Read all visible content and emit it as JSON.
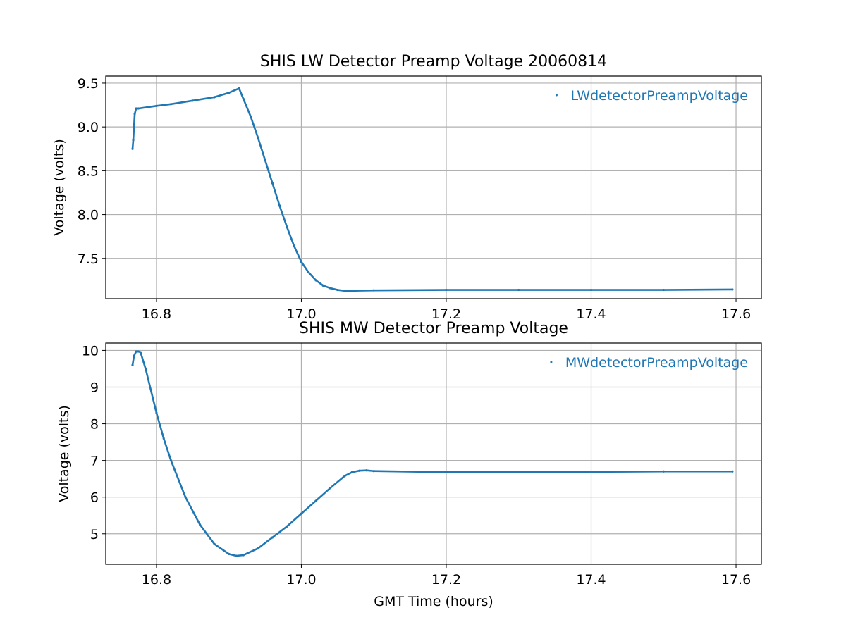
{
  "chart_data": [
    {
      "type": "scatter",
      "title": "SHIS LW Detector Preamp Voltage 20060814",
      "xlabel": "",
      "ylabel": "Voltage (volts)",
      "xlim": [
        16.73,
        17.635
      ],
      "ylim": [
        7.04,
        9.58
      ],
      "xticks": [
        16.8,
        17.0,
        17.2,
        17.4,
        17.6
      ],
      "xtick_labels": [
        "16.8",
        "17.0",
        "17.2",
        "17.4",
        "17.6"
      ],
      "yticks": [
        7.5,
        8.0,
        8.5,
        9.0,
        9.5
      ],
      "ytick_labels": [
        "7.5",
        "8.0",
        "8.5",
        "9.0",
        "9.5"
      ],
      "grid": true,
      "legend_position": "top-right",
      "color": "#1f77b4",
      "series": [
        {
          "name": "LWdetectorPreampVoltage",
          "x": [
            16.767,
            16.768,
            16.77,
            16.772,
            16.775,
            16.8,
            16.82,
            16.85,
            16.88,
            16.9,
            16.914,
            16.92,
            16.93,
            16.94,
            16.95,
            16.96,
            16.97,
            16.98,
            16.99,
            17.0,
            17.01,
            17.02,
            17.03,
            17.04,
            17.05,
            17.06,
            17.07,
            17.1,
            17.2,
            17.3,
            17.4,
            17.5,
            17.595
          ],
          "y": [
            8.75,
            8.85,
            9.15,
            9.21,
            9.21,
            9.24,
            9.26,
            9.3,
            9.34,
            9.39,
            9.44,
            9.32,
            9.12,
            8.88,
            8.62,
            8.36,
            8.1,
            7.86,
            7.64,
            7.46,
            7.34,
            7.25,
            7.19,
            7.16,
            7.14,
            7.13,
            7.13,
            7.135,
            7.14,
            7.14,
            7.14,
            7.14,
            7.145
          ]
        }
      ]
    },
    {
      "type": "scatter",
      "title": "SHIS MW Detector Preamp Voltage",
      "xlabel": "GMT Time (hours)",
      "ylabel": "Voltage (volts)",
      "xlim": [
        16.73,
        17.635
      ],
      "ylim": [
        4.17,
        10.2
      ],
      "xticks": [
        16.8,
        17.0,
        17.2,
        17.4,
        17.6
      ],
      "xtick_labels": [
        "16.8",
        "17.0",
        "17.2",
        "17.4",
        "17.6"
      ],
      "yticks": [
        5,
        6,
        7,
        8,
        9,
        10
      ],
      "ytick_labels": [
        "5",
        "6",
        "7",
        "8",
        "9",
        "10"
      ],
      "grid": true,
      "legend_position": "top-right",
      "color": "#1f77b4",
      "series": [
        {
          "name": "MWdetectorPreampVoltage",
          "x": [
            16.767,
            16.769,
            16.772,
            16.775,
            16.778,
            16.785,
            16.8,
            16.81,
            16.82,
            16.84,
            16.86,
            16.88,
            16.9,
            16.91,
            16.92,
            16.94,
            16.96,
            16.98,
            17.0,
            17.02,
            17.04,
            17.06,
            17.07,
            17.08,
            17.09,
            17.1,
            17.2,
            17.3,
            17.4,
            17.5,
            17.595
          ],
          "y": [
            9.6,
            9.85,
            9.97,
            9.97,
            9.95,
            9.5,
            8.3,
            7.6,
            7.0,
            6.0,
            5.25,
            4.72,
            4.45,
            4.4,
            4.42,
            4.6,
            4.9,
            5.2,
            5.55,
            5.9,
            6.25,
            6.58,
            6.68,
            6.72,
            6.73,
            6.71,
            6.68,
            6.69,
            6.69,
            6.7,
            6.7
          ]
        }
      ]
    }
  ]
}
